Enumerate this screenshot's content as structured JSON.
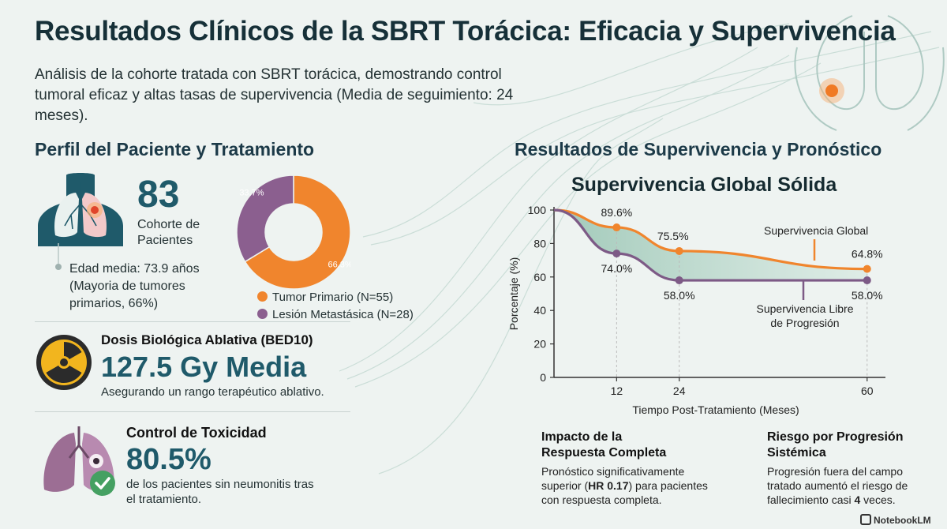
{
  "header": {
    "title": "Resultados Clínicos de la SBRT Torácica: Eficacia y Supervivencia",
    "subtitle": "Análisis de la cohorte tratada con SBRT torácica, demostrando control tumoral eficaz y altas tasas de supervivencia (Media de seguimiento: 24 meses)."
  },
  "left": {
    "section_title": "Perfil del Paciente y Tratamiento",
    "cohort": {
      "number": "83",
      "label_line1": "Cohorte de",
      "label_line2": "Pacientes"
    },
    "age": {
      "line1": "Edad media: 73.9 años",
      "line2": "(Mayoria de tumores",
      "line3": "primarios, 66%)"
    },
    "dose": {
      "heading": "Dosis Biológica Ablativa (BED10)",
      "value": "127.5 Gy Media",
      "caption": "Asegurando un rango terapéutico ablativo."
    },
    "toxicity": {
      "heading": "Control de Toxicidad",
      "value": "80.5%",
      "caption_line1": "de los pacientes sin neumonitis tras",
      "caption_line2": "el tratamiento."
    },
    "icons": {
      "chest": "lungs-chest-icon",
      "radiation": "radiation-icon",
      "lungs": "lungs-check-icon"
    }
  },
  "donut": {
    "slices": [
      {
        "name": "Tumor Primario (N=55)",
        "value": 66.3,
        "label": "66.3%",
        "color": "#f0852d"
      },
      {
        "name": "Lesión Metastásica (N=28)",
        "value": 33.7,
        "label": "33.7%",
        "color": "#8b5f8f"
      }
    ]
  },
  "right": {
    "section_title": "Resultados de Supervivencia y Pronóstico",
    "chart_title": "Supervivencia Global Sólida",
    "cards": [
      {
        "h1": "Impacto de la",
        "h2": "Respuesta Completa",
        "t1": "Pronóstico significativamente",
        "t2a": "superior (",
        "t2b": "HR 0.17",
        "t2c": ") para pacientes",
        "t3": "con respuesta completa."
      },
      {
        "h1": "Riesgo por Progresión",
        "h2": "Sistémica",
        "t1": "Progresión fuera del campo",
        "t2": "tratado aumentó el riesgo de",
        "t3a": "fallecimiento casi ",
        "t3b": "4",
        "t3c": " veces."
      }
    ]
  },
  "chart_data": {
    "type": "line",
    "title": "Supervivencia Global Sólida",
    "xlabel": "Tiempo Post-Tratamiento (Meses)",
    "ylabel": "Porcentaje (%)",
    "xlim": [
      0,
      62
    ],
    "ylim": [
      0,
      100
    ],
    "xticks": [
      12,
      24,
      60
    ],
    "yticks": [
      0,
      20,
      40,
      60,
      80,
      100
    ],
    "series": [
      {
        "name": "Supervivencia Global",
        "color": "#f0852d",
        "points": [
          [
            0,
            100
          ],
          [
            12,
            89.6
          ],
          [
            24,
            75.5
          ],
          [
            60,
            64.8
          ]
        ],
        "labels": [
          "89.6%",
          "75.5%",
          "64.8%"
        ]
      },
      {
        "name": "Supervivencia Libre de Progresión",
        "name_line1": "Supervivencia Libre",
        "name_line2": "de Progresión",
        "color": "#7d5a86",
        "points": [
          [
            0,
            100
          ],
          [
            12,
            74.0
          ],
          [
            24,
            58.0
          ],
          [
            60,
            58.0
          ]
        ],
        "labels": [
          "74.0%",
          "58.0%",
          "58.0%"
        ]
      }
    ]
  },
  "footer": {
    "brand": "NotebookLM"
  }
}
